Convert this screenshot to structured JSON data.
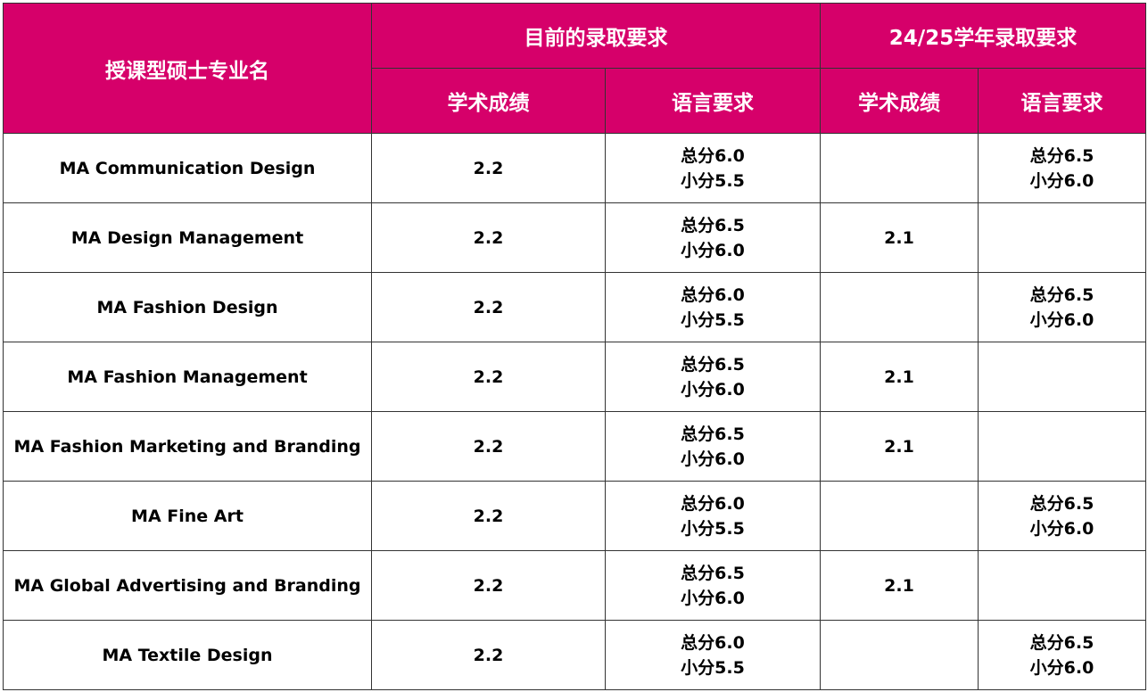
{
  "header": {
    "program_name": "授课型硕士专业名",
    "current_group": "目前的录取要求",
    "future_group": "24/25学年录取要求",
    "current_academic": "学术成绩",
    "current_language": "语言要求",
    "future_academic": "学术成绩",
    "future_language": "语言要求"
  },
  "rows": [
    {
      "program": "MA Communication Design",
      "current_academic": "2.2",
      "current_language": [
        "总分6.0",
        "小分5.5"
      ],
      "future_academic": "",
      "future_language": [
        "总分6.5",
        "小分6.0"
      ]
    },
    {
      "program": "MA Design Management",
      "current_academic": "2.2",
      "current_language": [
        "总分6.5",
        "小分6.0"
      ],
      "future_academic": "2.1",
      "future_language": [
        "",
        ""
      ]
    },
    {
      "program": "MA Fashion Design",
      "current_academic": "2.2",
      "current_language": [
        "总分6.0",
        "小分5.5"
      ],
      "future_academic": "",
      "future_language": [
        "总分6.5",
        "小分6.0"
      ]
    },
    {
      "program": "MA Fashion Management",
      "current_academic": "2.2",
      "current_language": [
        "总分6.5",
        "小分6.0"
      ],
      "future_academic": "2.1",
      "future_language": [
        "",
        ""
      ]
    },
    {
      "program": "MA Fashion Marketing and Branding",
      "current_academic": "2.2",
      "current_language": [
        "总分6.5",
        "小分6.0"
      ],
      "future_academic": "2.1",
      "future_language": [
        "",
        ""
      ]
    },
    {
      "program": "MA Fine Art",
      "current_academic": "2.2",
      "current_language": [
        "总分6.0",
        "小分5.5"
      ],
      "future_academic": "",
      "future_language": [
        "总分6.5",
        "小分6.0"
      ]
    },
    {
      "program": "MA Global Advertising and Branding",
      "current_academic": "2.2",
      "current_language": [
        "总分6.5",
        "小分6.0"
      ],
      "future_academic": "2.1",
      "future_language": [
        "",
        ""
      ]
    },
    {
      "program": "MA Textile Design",
      "current_academic": "2.2",
      "current_language": [
        "总分6.0",
        "小分5.5"
      ],
      "future_academic": "",
      "future_language": [
        "总分6.5",
        "小分6.0"
      ]
    }
  ]
}
